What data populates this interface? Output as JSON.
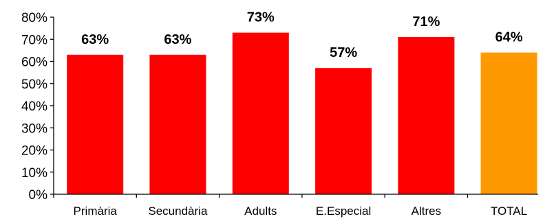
{
  "chart_data": {
    "type": "bar",
    "categories": [
      "Primària",
      "Secundària",
      "Adults",
      "E.Especial",
      "Altres",
      "TOTAL"
    ],
    "values": [
      63,
      63,
      73,
      57,
      71,
      64
    ],
    "data_labels": [
      "63%",
      "63%",
      "73%",
      "57%",
      "71%",
      "64%"
    ],
    "bar_colors": [
      "#ff0000",
      "#ff0000",
      "#ff0000",
      "#ff0000",
      "#ff0000",
      "#ff9900"
    ],
    "ylim": [
      0,
      80
    ],
    "y_ticks": [
      0,
      10,
      20,
      30,
      40,
      50,
      60,
      70,
      80
    ],
    "y_tick_labels": [
      "0%",
      "10%",
      "20%",
      "30%",
      "40%",
      "50%",
      "60%",
      "70%",
      "80%"
    ],
    "grid": false,
    "legend": "none"
  }
}
